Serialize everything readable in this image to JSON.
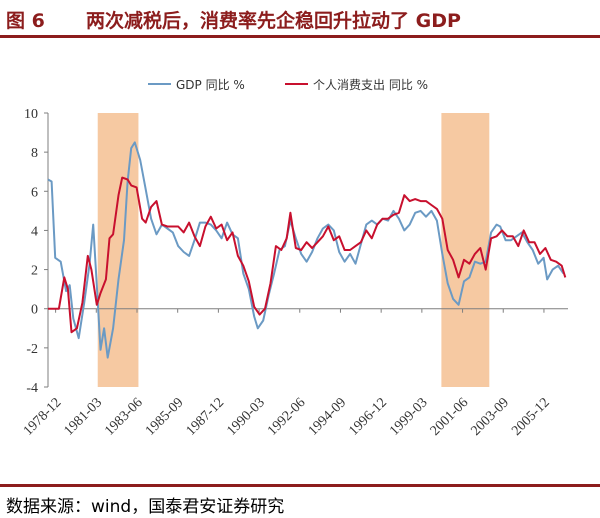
{
  "title": {
    "number": "图 6",
    "text": "两次减税后，消费率先企稳回升拉动了 GDP"
  },
  "footer": {
    "source": "数据来源：wind，国泰君安证券研究"
  },
  "chart_data": {
    "type": "line",
    "ylim": [
      -4,
      10
    ],
    "yticks": [
      -4,
      -2,
      0,
      2,
      4,
      6,
      8,
      10
    ],
    "xrange": [
      1978.5,
      2007.25
    ],
    "xticks": [
      {
        "label": "1978-12",
        "x": 1978.92
      },
      {
        "label": "1981-03",
        "x": 1981.17
      },
      {
        "label": "1983-06",
        "x": 1983.42
      },
      {
        "label": "1985-09",
        "x": 1985.67
      },
      {
        "label": "1987-12",
        "x": 1987.92
      },
      {
        "label": "1990-03",
        "x": 1990.17
      },
      {
        "label": "1992-06",
        "x": 1992.42
      },
      {
        "label": "1994-09",
        "x": 1994.67
      },
      {
        "label": "1996-12",
        "x": 1996.92
      },
      {
        "label": "1999-03",
        "x": 1999.17
      },
      {
        "label": "2001-06",
        "x": 2001.42
      },
      {
        "label": "2003-09",
        "x": 2003.67
      },
      {
        "label": "2005-12",
        "x": 2005.92
      }
    ],
    "shaded_periods": [
      [
        1981.25,
        1983.5
      ],
      [
        2000.25,
        2002.9
      ]
    ],
    "shade_color": "#f6c9a2",
    "legend": {
      "placement": "top"
    },
    "series": [
      {
        "name": "GDP 同比 %",
        "color": "#6b9ac4",
        "points": [
          [
            1978.5,
            6.6
          ],
          [
            1978.7,
            6.5
          ],
          [
            1978.9,
            2.6
          ],
          [
            1979.2,
            2.4
          ],
          [
            1979.5,
            0.9
          ],
          [
            1979.7,
            1.2
          ],
          [
            1979.9,
            -0.5
          ],
          [
            1980.2,
            -1.5
          ],
          [
            1980.5,
            0.3
          ],
          [
            1980.8,
            2.3
          ],
          [
            1981.0,
            4.3
          ],
          [
            1981.2,
            1.2
          ],
          [
            1981.4,
            -2.1
          ],
          [
            1981.6,
            -1.0
          ],
          [
            1981.8,
            -2.5
          ],
          [
            1982.1,
            -1.0
          ],
          [
            1982.4,
            1.5
          ],
          [
            1982.7,
            3.5
          ],
          [
            1982.9,
            6.5
          ],
          [
            1983.1,
            8.2
          ],
          [
            1983.3,
            8.5
          ],
          [
            1983.6,
            7.6
          ],
          [
            1983.9,
            6.1
          ],
          [
            1984.2,
            4.6
          ],
          [
            1984.5,
            3.8
          ],
          [
            1984.8,
            4.3
          ],
          [
            1985.1,
            4.1
          ],
          [
            1985.4,
            3.9
          ],
          [
            1985.7,
            3.2
          ],
          [
            1986.0,
            2.9
          ],
          [
            1986.3,
            2.7
          ],
          [
            1986.6,
            3.5
          ],
          [
            1986.9,
            4.4
          ],
          [
            1987.2,
            4.4
          ],
          [
            1987.5,
            4.3
          ],
          [
            1987.8,
            4.0
          ],
          [
            1988.1,
            3.6
          ],
          [
            1988.4,
            4.4
          ],
          [
            1988.7,
            3.8
          ],
          [
            1989.0,
            3.6
          ],
          [
            1989.3,
            1.8
          ],
          [
            1989.6,
            1.0
          ],
          [
            1989.9,
            -0.4
          ],
          [
            1990.1,
            -1.0
          ],
          [
            1990.4,
            -0.6
          ],
          [
            1990.7,
            0.7
          ],
          [
            1991.0,
            1.8
          ],
          [
            1991.3,
            3.0
          ],
          [
            1991.6,
            3.2
          ],
          [
            1991.9,
            4.5
          ],
          [
            1992.2,
            3.6
          ],
          [
            1992.5,
            2.8
          ],
          [
            1992.8,
            2.4
          ],
          [
            1993.1,
            2.9
          ],
          [
            1993.4,
            3.6
          ],
          [
            1993.7,
            4.1
          ],
          [
            1994.0,
            4.3
          ],
          [
            1994.3,
            4.0
          ],
          [
            1994.6,
            2.9
          ],
          [
            1994.9,
            2.4
          ],
          [
            1995.2,
            2.8
          ],
          [
            1995.5,
            2.3
          ],
          [
            1995.8,
            3.3
          ],
          [
            1996.1,
            4.3
          ],
          [
            1996.4,
            4.5
          ],
          [
            1996.7,
            4.3
          ],
          [
            1997.0,
            4.6
          ],
          [
            1997.3,
            4.5
          ],
          [
            1997.6,
            5.0
          ],
          [
            1997.9,
            4.6
          ],
          [
            1998.2,
            4.0
          ],
          [
            1998.5,
            4.3
          ],
          [
            1998.8,
            4.9
          ],
          [
            1999.1,
            5.0
          ],
          [
            1999.4,
            4.7
          ],
          [
            1999.7,
            5.0
          ],
          [
            2000.0,
            4.5
          ],
          [
            2000.3,
            2.8
          ],
          [
            2000.6,
            1.3
          ],
          [
            2000.9,
            0.5
          ],
          [
            2001.2,
            0.2
          ],
          [
            2001.5,
            1.4
          ],
          [
            2001.8,
            1.6
          ],
          [
            2002.1,
            2.4
          ],
          [
            2002.4,
            2.3
          ],
          [
            2002.7,
            2.4
          ],
          [
            2003.0,
            3.9
          ],
          [
            2003.3,
            4.3
          ],
          [
            2003.5,
            4.2
          ],
          [
            2003.8,
            3.5
          ],
          [
            2004.1,
            3.5
          ],
          [
            2004.4,
            3.7
          ],
          [
            2004.7,
            3.9
          ],
          [
            2005.0,
            3.4
          ],
          [
            2005.3,
            3.0
          ],
          [
            2005.6,
            2.3
          ],
          [
            2005.9,
            2.6
          ],
          [
            2006.1,
            1.5
          ],
          [
            2006.4,
            2.0
          ],
          [
            2006.7,
            2.2
          ],
          [
            2007.0,
            1.8
          ]
        ]
      },
      {
        "name": "个人消费支出 同比 %",
        "color": "#c8102e",
        "points": [
          [
            1978.5,
            0.0
          ],
          [
            1978.8,
            0.0
          ],
          [
            1979.1,
            0.0
          ],
          [
            1979.4,
            1.6
          ],
          [
            1979.6,
            1.0
          ],
          [
            1979.8,
            -1.2
          ],
          [
            1980.1,
            -1.0
          ],
          [
            1980.4,
            0.3
          ],
          [
            1980.7,
            2.7
          ],
          [
            1980.9,
            2.0
          ],
          [
            1981.2,
            0.2
          ],
          [
            1981.4,
            0.8
          ],
          [
            1981.7,
            1.5
          ],
          [
            1981.9,
            3.6
          ],
          [
            1982.1,
            3.8
          ],
          [
            1982.4,
            5.8
          ],
          [
            1982.6,
            6.7
          ],
          [
            1982.9,
            6.6
          ],
          [
            1983.1,
            6.3
          ],
          [
            1983.4,
            6.2
          ],
          [
            1983.7,
            4.6
          ],
          [
            1983.9,
            4.4
          ],
          [
            1984.2,
            5.2
          ],
          [
            1984.5,
            5.5
          ],
          [
            1984.8,
            4.3
          ],
          [
            1985.1,
            4.2
          ],
          [
            1985.4,
            4.2
          ],
          [
            1985.7,
            4.2
          ],
          [
            1986.0,
            3.9
          ],
          [
            1986.3,
            4.4
          ],
          [
            1986.6,
            3.7
          ],
          [
            1986.9,
            3.2
          ],
          [
            1987.2,
            4.2
          ],
          [
            1987.5,
            4.7
          ],
          [
            1987.8,
            4.1
          ],
          [
            1988.1,
            4.3
          ],
          [
            1988.4,
            3.5
          ],
          [
            1988.7,
            3.9
          ],
          [
            1989.0,
            2.7
          ],
          [
            1989.3,
            2.2
          ],
          [
            1989.6,
            1.4
          ],
          [
            1989.9,
            0.1
          ],
          [
            1990.2,
            -0.3
          ],
          [
            1990.5,
            0.0
          ],
          [
            1990.8,
            1.3
          ],
          [
            1991.1,
            3.2
          ],
          [
            1991.4,
            3.0
          ],
          [
            1991.7,
            3.6
          ],
          [
            1991.9,
            4.9
          ],
          [
            1992.2,
            3.1
          ],
          [
            1992.5,
            3.0
          ],
          [
            1992.8,
            3.4
          ],
          [
            1993.1,
            3.1
          ],
          [
            1993.4,
            3.4
          ],
          [
            1993.7,
            3.7
          ],
          [
            1994.0,
            4.2
          ],
          [
            1994.3,
            3.5
          ],
          [
            1994.6,
            3.7
          ],
          [
            1994.9,
            3.0
          ],
          [
            1995.2,
            3.0
          ],
          [
            1995.5,
            3.2
          ],
          [
            1995.8,
            3.4
          ],
          [
            1996.1,
            4.0
          ],
          [
            1996.4,
            3.6
          ],
          [
            1996.7,
            4.3
          ],
          [
            1997.0,
            4.6
          ],
          [
            1997.3,
            4.6
          ],
          [
            1997.6,
            4.8
          ],
          [
            1997.9,
            4.9
          ],
          [
            1998.2,
            5.8
          ],
          [
            1998.5,
            5.5
          ],
          [
            1998.8,
            5.6
          ],
          [
            1999.1,
            5.5
          ],
          [
            1999.4,
            5.5
          ],
          [
            1999.7,
            5.3
          ],
          [
            2000.0,
            5.1
          ],
          [
            2000.3,
            4.6
          ],
          [
            2000.6,
            3.0
          ],
          [
            2000.9,
            2.5
          ],
          [
            2001.2,
            1.6
          ],
          [
            2001.5,
            2.5
          ],
          [
            2001.8,
            2.3
          ],
          [
            2002.1,
            2.8
          ],
          [
            2002.4,
            3.1
          ],
          [
            2002.7,
            2.0
          ],
          [
            2003.0,
            3.6
          ],
          [
            2003.3,
            3.7
          ],
          [
            2003.6,
            4.0
          ],
          [
            2003.9,
            3.7
          ],
          [
            2004.2,
            3.7
          ],
          [
            2004.5,
            3.2
          ],
          [
            2004.8,
            4.0
          ],
          [
            2005.1,
            3.4
          ],
          [
            2005.4,
            3.4
          ],
          [
            2005.7,
            2.8
          ],
          [
            2006.0,
            3.1
          ],
          [
            2006.3,
            2.5
          ],
          [
            2006.6,
            2.4
          ],
          [
            2006.9,
            2.2
          ],
          [
            2007.1,
            1.6
          ]
        ]
      }
    ]
  }
}
